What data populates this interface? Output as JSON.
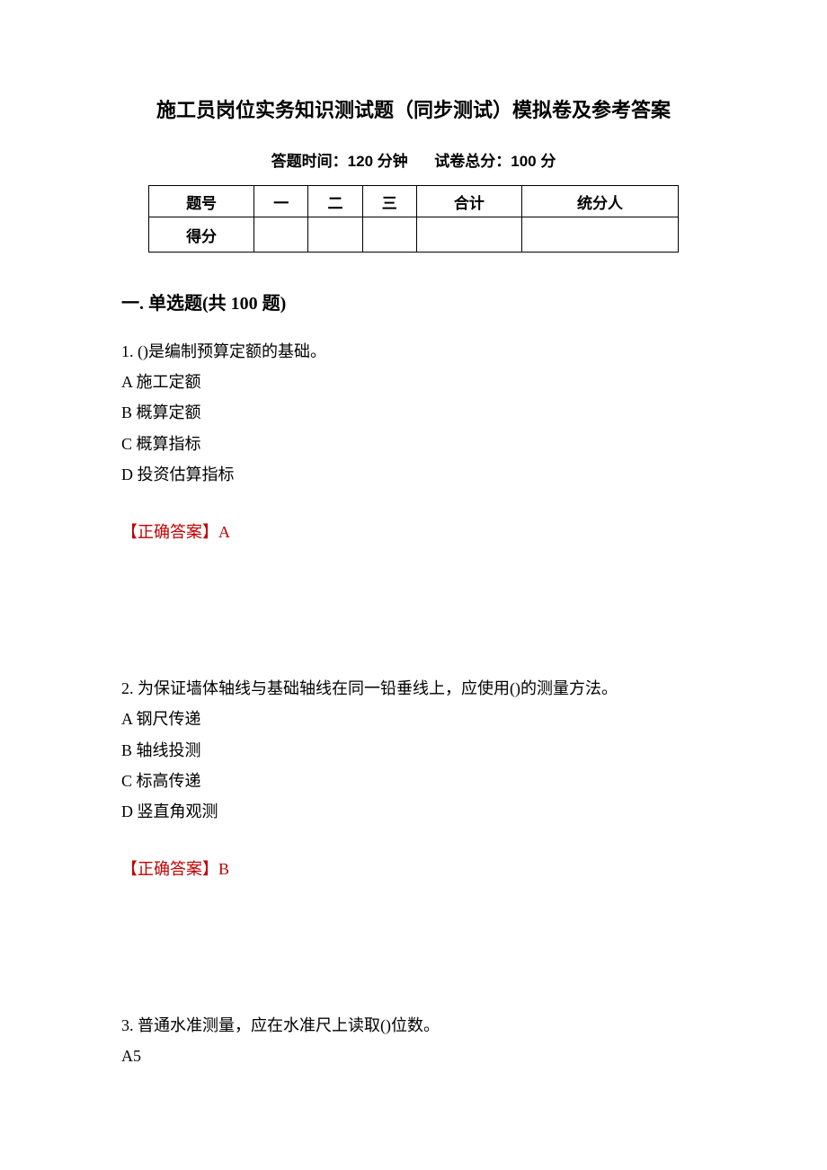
{
  "title": "施工员岗位实务知识测试题（同步测试）模拟卷及参考答案",
  "subtitle_left": "答题时间：120 分钟",
  "subtitle_right": "试卷总分：100 分",
  "score_table": {
    "headers": [
      "题号",
      "一",
      "二",
      "三",
      "合计",
      "统分人"
    ],
    "row2_first": "得分"
  },
  "section_heading": "一. 单选题(共 100 题)",
  "q1": {
    "stem": "1. ()是编制预算定额的基础。",
    "opts": [
      "A 施工定额",
      "B 概算定额",
      "C 概算指标",
      "D 投资估算指标"
    ],
    "answer": "【正确答案】A"
  },
  "q2": {
    "stem": "2. 为保证墙体轴线与基础轴线在同一铅垂线上，应使用()的测量方法。",
    "opts": [
      "A 钢尺传递",
      "B 轴线投测",
      "C 标高传递",
      "D 竖直角观测"
    ],
    "answer": "【正确答案】B"
  },
  "q3": {
    "stem": "3. 普通水准测量，应在水准尺上读取()位数。",
    "opts_partial": [
      "A5"
    ]
  },
  "colors": {
    "text": "#000000",
    "answer": "#c00000",
    "background": "#ffffff",
    "border": "#000000"
  }
}
